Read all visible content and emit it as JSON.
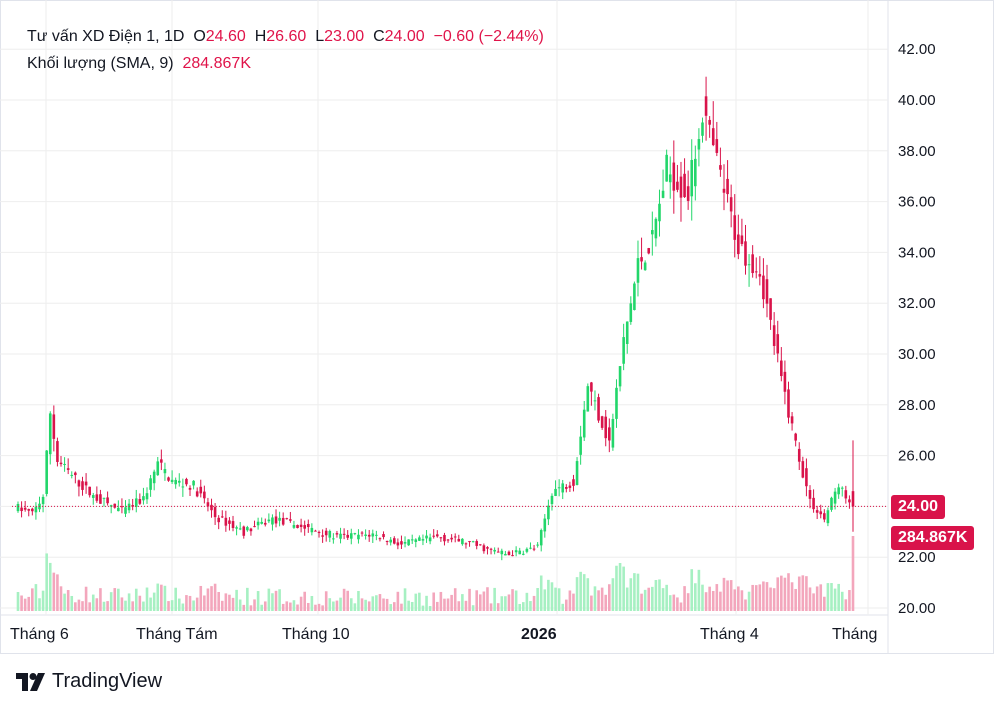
{
  "legend": {
    "symbol": "Tư vấn XD Điện 1, 1D",
    "o_label": "O",
    "o_value": "24.60",
    "h_label": "H",
    "h_value": "26.60",
    "l_label": "L",
    "l_value": "23.00",
    "c_label": "C",
    "c_value": "24.00",
    "change": "−0.60 (−2.44%)",
    "volume_label": "Khối lượng (SMA, 9)",
    "volume_value": "284.867K"
  },
  "price_tag": "24.00",
  "volume_tag": "284.867K",
  "brand": "TradingView",
  "colors": {
    "up": "#22d66a",
    "down": "#d9134a",
    "up_vol": "#a6f0c2",
    "down_vol": "#f3a6bc",
    "grid": "#eeeeee",
    "text": "#131722"
  },
  "chart_data": {
    "type": "candlestick",
    "yticks": [
      "42.00",
      "40.00",
      "38.00",
      "36.00",
      "34.00",
      "32.00",
      "30.00",
      "28.00",
      "26.00",
      "24.00",
      "22.00",
      "20.00"
    ],
    "ylim": [
      20,
      42
    ],
    "xticks": [
      "Tháng 6",
      "Tháng Tám",
      "Tháng 10",
      "2026",
      "Tháng 4",
      "Tháng"
    ],
    "last": {
      "open": 24.6,
      "high": 26.6,
      "low": 23.0,
      "close": 24.0,
      "change": -0.6,
      "change_pct": -2.44
    },
    "trend_anchors": [
      [
        0,
        24.0
      ],
      [
        5,
        23.7
      ],
      [
        8,
        24.4
      ],
      [
        10,
        27.7
      ],
      [
        12,
        25.8
      ],
      [
        16,
        25.2
      ],
      [
        22,
        24.4
      ],
      [
        30,
        23.8
      ],
      [
        36,
        24.3
      ],
      [
        40,
        25.7
      ],
      [
        44,
        25.0
      ],
      [
        50,
        24.8
      ],
      [
        56,
        23.6
      ],
      [
        64,
        23.0
      ],
      [
        72,
        23.5
      ],
      [
        80,
        23.2
      ],
      [
        90,
        22.8
      ],
      [
        100,
        22.9
      ],
      [
        108,
        22.5
      ],
      [
        118,
        22.8
      ],
      [
        126,
        22.6
      ],
      [
        132,
        22.3
      ],
      [
        138,
        22.1
      ],
      [
        146,
        22.4
      ],
      [
        150,
        24.6
      ],
      [
        156,
        25.0
      ],
      [
        160,
        28.8
      ],
      [
        166,
        26.5
      ],
      [
        170,
        30.5
      ],
      [
        174,
        33.5
      ],
      [
        178,
        34.5
      ],
      [
        182,
        37.3
      ],
      [
        188,
        36.3
      ],
      [
        192,
        39.6
      ],
      [
        196,
        37.5
      ],
      [
        202,
        34.3
      ],
      [
        208,
        33.3
      ],
      [
        214,
        29.0
      ],
      [
        218,
        26.5
      ],
      [
        222,
        24.2
      ],
      [
        226,
        23.5
      ],
      [
        230,
        24.9
      ],
      [
        233,
        24.0
      ]
    ]
  }
}
